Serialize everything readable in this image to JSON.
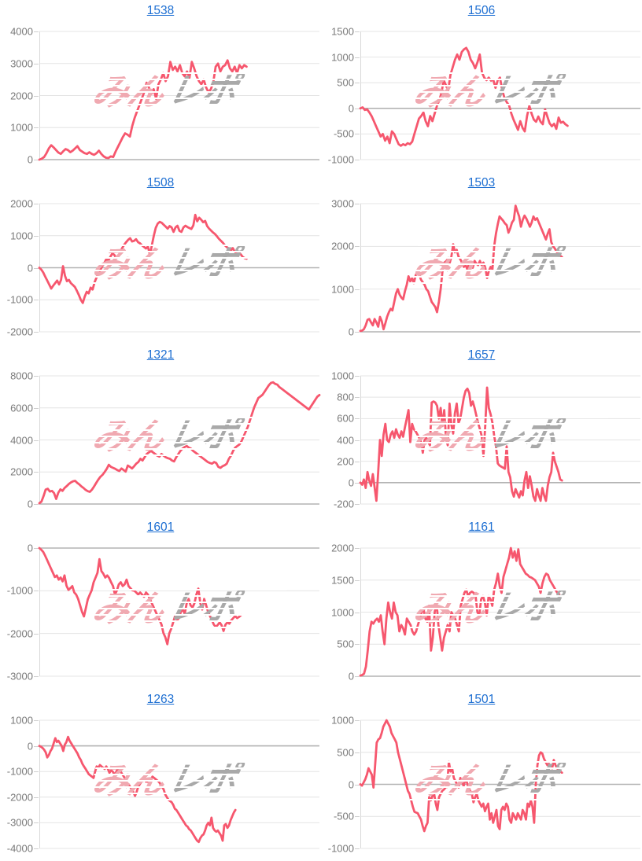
{
  "watermark": {
    "pink_text": "みん",
    "gray_text": "レポ"
  },
  "colors": {
    "line": "#f6576e",
    "title_link": "#1e6fd2",
    "axis_label": "#7a7a7a",
    "gridline": "#e4e4e4",
    "zero_line": "#b3b3b3",
    "axis_line": "#d9d9d9",
    "tick_dash": "#cfcfcf",
    "watermark_pink": "#f0a9b1",
    "watermark_gray": "#a9a9a9"
  },
  "chart_data": [
    {
      "type": "line",
      "title": "1538",
      "ylim": [
        0,
        4000
      ],
      "yticks": [
        4000,
        3000,
        2000,
        1000,
        0
      ],
      "x_end_frac": 0.74,
      "legend": "none",
      "grid": "horizontal",
      "values": [
        0,
        30,
        80,
        200,
        350,
        450,
        380,
        300,
        220,
        180,
        260,
        330,
        300,
        230,
        280,
        350,
        420,
        300,
        250,
        200,
        180,
        230,
        180,
        150,
        200,
        280,
        180,
        100,
        60,
        50,
        100,
        80,
        250,
        400,
        550,
        700,
        820,
        780,
        720,
        1050,
        1300,
        1500,
        1700,
        1900,
        2100,
        2400,
        2250,
        2050,
        2200,
        1900,
        2350,
        2500,
        2700,
        2450,
        2600,
        3050,
        2800,
        2900,
        2750,
        2950,
        2700,
        2600,
        2750,
        2550,
        3050,
        2850,
        2600,
        2450,
        2350,
        2500,
        2250,
        2100,
        2200,
        2400,
        2900,
        3000,
        2750,
        2900,
        2950,
        3100,
        2850,
        2750,
        2900,
        2700,
        2950,
        2850,
        2950,
        2900
      ]
    },
    {
      "type": "line",
      "title": "1506",
      "ylim": [
        -1000,
        1500
      ],
      "yticks": [
        1500,
        1000,
        500,
        0,
        -500,
        -1000
      ],
      "x_end_frac": 0.74,
      "legend": "none",
      "grid": "horizontal",
      "values": [
        0,
        20,
        -30,
        -20,
        -80,
        -150,
        -250,
        -350,
        -450,
        -550,
        -500,
        -630,
        -550,
        -680,
        -450,
        -500,
        -600,
        -700,
        -730,
        -700,
        -720,
        -680,
        -700,
        -650,
        -500,
        -350,
        -200,
        -150,
        -80,
        -250,
        -350,
        -150,
        -250,
        -100,
        50,
        150,
        300,
        550,
        450,
        350,
        650,
        800,
        950,
        1050,
        950,
        1100,
        1150,
        1180,
        1100,
        950,
        880,
        780,
        900,
        1050,
        700,
        600,
        550,
        600,
        540,
        560,
        400,
        550,
        600,
        350,
        200,
        120,
        60,
        -100,
        -220,
        -320,
        -420,
        -250,
        -380,
        -450,
        -150,
        50,
        -100,
        -220,
        -260,
        -160,
        -260,
        -310,
        -20,
        -160,
        -290,
        -350,
        -300,
        -400,
        -180,
        -280,
        -260,
        -310,
        -340
      ]
    },
    {
      "type": "line",
      "title": "1508",
      "ylim": [
        -2000,
        2000
      ],
      "yticks": [
        2000,
        1000,
        0,
        -1000,
        -2000
      ],
      "x_end_frac": 0.74,
      "legend": "none",
      "grid": "horizontal",
      "values": [
        0,
        -60,
        -150,
        -280,
        -400,
        -520,
        -650,
        -560,
        -480,
        -400,
        -520,
        -380,
        50,
        -250,
        -420,
        -380,
        -480,
        -540,
        -600,
        -720,
        -850,
        -1000,
        -1100,
        -900,
        -750,
        -800,
        -620,
        -680,
        -450,
        -300,
        -180,
        -60,
        60,
        160,
        280,
        230,
        340,
        450,
        400,
        300,
        350,
        500,
        620,
        720,
        800,
        870,
        920,
        820,
        840,
        890,
        800,
        760,
        700,
        650,
        600,
        660,
        400,
        700,
        1000,
        1250,
        1380,
        1430,
        1400,
        1340,
        1280,
        1220,
        1300,
        1260,
        1120,
        1260,
        1310,
        1150,
        1120,
        1260,
        1310,
        1270,
        1240,
        1210,
        1320,
        1650,
        1450,
        1560,
        1500,
        1420,
        1460,
        1300,
        1220,
        1160,
        1100,
        1050,
        980,
        900,
        840,
        780,
        700,
        640,
        600,
        540,
        610,
        500,
        450,
        490,
        420,
        340,
        300,
        280
      ]
    },
    {
      "type": "line",
      "title": "1503",
      "ylim": [
        0,
        3000
      ],
      "yticks": [
        3000,
        2000,
        1000,
        0
      ],
      "x_end_frac": 0.72,
      "legend": "none",
      "grid": "horizontal",
      "values": [
        20,
        30,
        60,
        150,
        280,
        300,
        220,
        150,
        300,
        220,
        120,
        350,
        250,
        60,
        200,
        350,
        460,
        540,
        500,
        700,
        900,
        1000,
        870,
        800,
        760,
        950,
        1100,
        1300,
        1180,
        1260,
        1140,
        1320,
        1420,
        1340,
        1220,
        1160,
        1100,
        1000,
        950,
        820,
        700,
        640,
        580,
        460,
        700,
        1000,
        1400,
        1620,
        1650,
        1700,
        1600,
        1760,
        2050,
        1860,
        1920,
        1760,
        1700,
        1620,
        1520,
        1560,
        1460,
        1620,
        1560,
        1500,
        1660,
        1600,
        1560,
        1660,
        1560,
        1620,
        1500,
        1260,
        1420,
        1520,
        1460,
        2000,
        2300,
        2520,
        2700,
        2650,
        2600,
        2540,
        2500,
        2320,
        2420,
        2560,
        2620,
        2950,
        2820,
        2700,
        2460,
        2620,
        2720,
        2650,
        2560,
        2460,
        2560,
        2700,
        2620,
        2660,
        2560,
        2460,
        2360,
        2260,
        2160,
        2300,
        2400,
        2100,
        2000,
        1950,
        1870,
        1820,
        1780,
        1750
      ]
    },
    {
      "type": "line",
      "title": "1321",
      "ylim": [
        0,
        8000
      ],
      "yticks": [
        8000,
        6000,
        4000,
        2000,
        0
      ],
      "x_end_frac": 1.0,
      "legend": "none",
      "grid": "horizontal",
      "values": [
        50,
        150,
        500,
        900,
        950,
        780,
        820,
        680,
        320,
        700,
        920,
        820,
        1000,
        1120,
        1250,
        1350,
        1420,
        1450,
        1320,
        1220,
        1100,
        1000,
        880,
        800,
        760,
        900,
        1100,
        1320,
        1520,
        1700,
        1820,
        2000,
        2200,
        2450,
        2320,
        2260,
        2200,
        2120,
        2060,
        2220,
        2120,
        2020,
        2400,
        2320,
        2220,
        2360,
        2520,
        2620,
        2820,
        2720,
        2920,
        3120,
        3220,
        3320,
        3220,
        3120,
        3020,
        2960,
        3120,
        3020,
        2920,
        2860,
        2820,
        2720,
        2660,
        2920,
        3120,
        3320,
        3460,
        3560,
        3620,
        3520,
        3460,
        3320,
        3220,
        3120,
        3020,
        2920,
        2820,
        2720,
        2620,
        2560,
        2520,
        2620,
        2560,
        2320,
        2260,
        2360,
        2420,
        2520,
        2820,
        3020,
        3320,
        3520,
        3620,
        3720,
        3920,
        4220,
        4520,
        4820,
        5220,
        5620,
        6020,
        6320,
        6620,
        6720,
        6820,
        7020,
        7220,
        7420,
        7560,
        7600,
        7500,
        7450,
        7300,
        7200,
        7100,
        7000,
        6900,
        6800,
        6700,
        6600,
        6500,
        6400,
        6300,
        6200,
        6100,
        6000,
        5900,
        6100,
        6300,
        6500,
        6700,
        6800
      ]
    },
    {
      "type": "line",
      "title": "1657",
      "ylim": [
        -200,
        1000
      ],
      "yticks": [
        1000,
        800,
        600,
        400,
        200,
        0,
        -200
      ],
      "x_end_frac": 0.72,
      "legend": "none",
      "grid": "horizontal",
      "values": [
        0,
        -20,
        30,
        -50,
        100,
        20,
        -30,
        80,
        -40,
        -170,
        100,
        400,
        250,
        450,
        550,
        400,
        380,
        450,
        480,
        420,
        500,
        450,
        420,
        480,
        430,
        520,
        600,
        680,
        380,
        550,
        500,
        480,
        450,
        420,
        380,
        280,
        400,
        420,
        380,
        350,
        750,
        760,
        750,
        720,
        600,
        700,
        530,
        680,
        420,
        350,
        740,
        540,
        460,
        650,
        740,
        560,
        600,
        700,
        800,
        860,
        880,
        840,
        720,
        760,
        700,
        630,
        560,
        500,
        440,
        250,
        540,
        890,
        700,
        640,
        560,
        440,
        340,
        180,
        160,
        150,
        140,
        130,
        340,
        100,
        50,
        -80,
        -130,
        -60,
        -100,
        -140,
        -80,
        -120,
        20,
        100,
        -50,
        60,
        -30,
        -130,
        -170,
        -60,
        -120,
        -170,
        -50,
        -120,
        -170,
        -30,
        50,
        100,
        280,
        200,
        150,
        100,
        30,
        20
      ]
    },
    {
      "type": "line",
      "title": "1601",
      "ylim": [
        -3000,
        0
      ],
      "yticks": [
        0,
        -1000,
        -2000,
        -3000
      ],
      "x_end_frac": 0.72,
      "legend": "none",
      "grid": "horizontal",
      "values": [
        0,
        -40,
        -90,
        -180,
        -280,
        -380,
        -480,
        -580,
        -680,
        -640,
        -740,
        -690,
        -780,
        -640,
        -880,
        -980,
        -940,
        -890,
        -1040,
        -1090,
        -1190,
        -1340,
        -1490,
        -1600,
        -1400,
        -1200,
        -1090,
        -990,
        -800,
        -690,
        -580,
        -260,
        -540,
        -600,
        -690,
        -640,
        -700,
        -800,
        -890,
        -1090,
        -990,
        -850,
        -800,
        -890,
        -850,
        -740,
        -890,
        -940,
        -990,
        -1000,
        -1040,
        -1090,
        -1040,
        -1090,
        -1140,
        -1040,
        -1090,
        -1190,
        -1290,
        -1390,
        -1490,
        -1590,
        -1690,
        -1790,
        -1990,
        -2090,
        -2250,
        -2000,
        -1890,
        -1740,
        -1590,
        -1690,
        -1640,
        -1490,
        -1440,
        -1540,
        -1290,
        -1190,
        -1340,
        -1390,
        -1290,
        -1090,
        -950,
        -1290,
        -1440,
        -1190,
        -1340,
        -1490,
        -1590,
        -1690,
        -1790,
        -1850,
        -1800,
        -1740,
        -1810,
        -1940,
        -1790,
        -1740,
        -1770,
        -1690,
        -1640,
        -1590,
        -1640,
        -1610,
        -1570
      ]
    },
    {
      "type": "line",
      "title": "1161",
      "ylim": [
        0,
        2000
      ],
      "yticks": [
        2000,
        1500,
        1000,
        500,
        0
      ],
      "x_end_frac": 0.71,
      "legend": "none",
      "grid": "horizontal",
      "values": [
        10,
        20,
        40,
        150,
        400,
        700,
        850,
        820,
        870,
        900,
        850,
        950,
        700,
        500,
        900,
        1150,
        1000,
        900,
        1150,
        1000,
        950,
        700,
        800,
        750,
        650,
        900,
        850,
        800,
        700,
        650,
        700,
        800,
        900,
        1000,
        1050,
        900,
        850,
        1100,
        400,
        600,
        1000,
        1150,
        800,
        600,
        400,
        600,
        700,
        800,
        700,
        1000,
        950,
        900,
        800,
        700,
        1100,
        1200,
        1300,
        1350,
        1250,
        1300,
        1320,
        1300,
        1250,
        1000,
        950,
        1200,
        1250,
        1150,
        950,
        1250,
        1200,
        1100,
        1350,
        1450,
        1600,
        1400,
        1300,
        1550,
        1650,
        1750,
        1850,
        2000,
        1850,
        1950,
        1800,
        1980,
        1750,
        1700,
        1650,
        1600,
        1580,
        1550,
        1540,
        1520,
        1500,
        1450,
        1400,
        1300,
        1450,
        1550,
        1600,
        1580,
        1500,
        1450,
        1400,
        1350,
        1300,
        1280
      ]
    },
    {
      "type": "line",
      "title": "1263",
      "ylim": [
        -4000,
        1000
      ],
      "yticks": [
        1000,
        0,
        -1000,
        -2000,
        -3000,
        -4000
      ],
      "x_end_frac": 0.7,
      "legend": "none",
      "grid": "horizontal",
      "values": [
        0,
        -30,
        -80,
        -150,
        -250,
        -450,
        -350,
        -200,
        -100,
        100,
        300,
        150,
        200,
        100,
        0,
        -200,
        50,
        150,
        350,
        200,
        100,
        0,
        -100,
        -200,
        -300,
        -450,
        -550,
        -700,
        -800,
        -900,
        -1000,
        -1100,
        -1150,
        -1200,
        -1250,
        -1000,
        -800,
        -850,
        -750,
        -800,
        -850,
        -900,
        -800,
        -900,
        -1050,
        -950,
        -1000,
        -1100,
        -1050,
        -900,
        -950,
        -1000,
        -1100,
        -1200,
        -1300,
        -1450,
        -1500,
        -1600,
        -1700,
        -1800,
        -1950,
        -1800,
        -1600,
        -1500,
        -1400,
        -1300,
        -1200,
        -1400,
        -1350,
        -1500,
        -1300,
        -1200,
        -1250,
        -1300,
        -1350,
        -1400,
        -1500,
        -1600,
        -1700,
        -1900,
        -2000,
        -2100,
        -2150,
        -2200,
        -2300,
        -2450,
        -2500,
        -2600,
        -2700,
        -2800,
        -2900,
        -3000,
        -3100,
        -3150,
        -3250,
        -3300,
        -3400,
        -3500,
        -3600,
        -3700,
        -3750,
        -3600,
        -3500,
        -3450,
        -3300,
        -3100,
        -3000,
        -3100,
        -2800,
        -3200,
        -3300,
        -3350,
        -3300,
        -3400,
        -3500,
        -3700,
        -3100,
        -3050,
        -3200,
        -3100,
        -2900,
        -2750,
        -2600,
        -2500
      ]
    },
    {
      "type": "line",
      "title": "1501",
      "ylim": [
        -1000,
        1000
      ],
      "yticks": [
        1000,
        500,
        0,
        -500,
        -1000
      ],
      "x_end_frac": 0.72,
      "legend": "none",
      "grid": "horizontal",
      "values": [
        0,
        -20,
        30,
        80,
        150,
        250,
        200,
        150,
        -50,
        300,
        650,
        700,
        720,
        800,
        900,
        950,
        1000,
        950,
        900,
        800,
        750,
        700,
        650,
        500,
        400,
        300,
        200,
        100,
        0,
        -100,
        -150,
        -250,
        -350,
        -430,
        -440,
        -450,
        -500,
        -550,
        -650,
        -730,
        -650,
        -600,
        -200,
        -250,
        -180,
        -150,
        -300,
        -400,
        -200,
        -150,
        -100,
        -80,
        -50,
        0,
        350,
        200,
        250,
        100,
        50,
        0,
        -50,
        100,
        50,
        -30,
        80,
        30,
        -50,
        -100,
        -150,
        -280,
        -200,
        -150,
        -250,
        -300,
        -350,
        -300,
        -420,
        -350,
        -300,
        -550,
        -450,
        -600,
        -500,
        -400,
        -650,
        -700,
        -400,
        -350,
        -400,
        -300,
        -350,
        -550,
        -600,
        -450,
        -500,
        -550,
        -450,
        -500,
        -550,
        -400,
        -450,
        -550,
        -300,
        -350,
        -250,
        -350,
        -600,
        0,
        300,
        450,
        500,
        480,
        400,
        350,
        300,
        320,
        280,
        250,
        380,
        300,
        250,
        220,
        200,
        180
      ]
    }
  ]
}
